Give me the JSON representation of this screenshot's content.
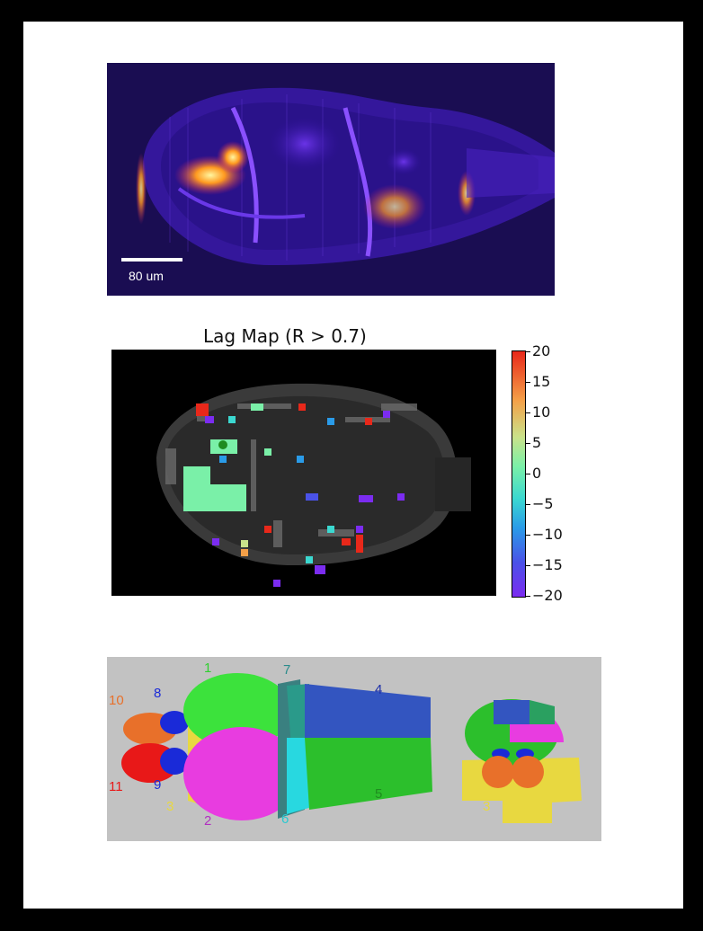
{
  "panel_a": {
    "scale_bar_label": "80 um"
  },
  "panel_b": {
    "title": "Lag Map (R > 0.7)",
    "colorbar_ticks": [
      "20",
      "15",
      "10",
      "5",
      "0",
      "−5",
      "−10",
      "−15",
      "−20"
    ]
  },
  "panel_c": {
    "region_labels": [
      {
        "text": "1",
        "color": "#2fcf2f"
      },
      {
        "text": "7",
        "color": "#2a8c8c"
      },
      {
        "text": "4",
        "color": "#1b2ea8"
      },
      {
        "text": "10",
        "color": "#e8702a"
      },
      {
        "text": "8",
        "color": "#1a2ad8"
      },
      {
        "text": "11",
        "color": "#e81818"
      },
      {
        "text": "9",
        "color": "#1a2ad8"
      },
      {
        "text": "3",
        "color": "#e8d840"
      },
      {
        "text": "2",
        "color": "#b030c0"
      },
      {
        "text": "6",
        "color": "#28c8d0"
      },
      {
        "text": "5",
        "color": "#1f8c1f"
      },
      {
        "text": "3",
        "color": "#e8d840"
      }
    ]
  }
}
